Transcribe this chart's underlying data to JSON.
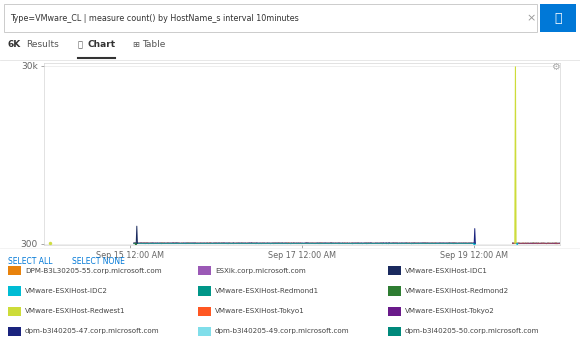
{
  "search_query": "Type=VMware_CL | measure count() by HostName_s interval 10minutes",
  "results_count": "6K",
  "y_tick_top": "30k",
  "y_tick_mid": "300",
  "x_ticks": [
    "Sep 15 12:00 AM",
    "Sep 17 12:00 AM",
    "Sep 19 12:00 AM"
  ],
  "legend_items": [
    {
      "label": "DPM-B3L30205-55.corp.microsoft.com",
      "color": "#E8820C"
    },
    {
      "label": "ESXik.corp.microsoft.com",
      "color": "#9B59B6"
    },
    {
      "label": "VMware-ESXiHost-IDC1",
      "color": "#1A2A5E"
    },
    {
      "label": "VMware-ESXiHost-IDC2",
      "color": "#00BCD4"
    },
    {
      "label": "VMware-ESXiHost-Redmond1",
      "color": "#009688"
    },
    {
      "label": "VMware-ESXiHost-Redmond2",
      "color": "#2E7D32"
    },
    {
      "label": "VMware-ESXiHost-Redwest1",
      "color": "#CDDC39"
    },
    {
      "label": "VMware-ESXiHost-Tokyo1",
      "color": "#FF5722"
    },
    {
      "label": "VMware-ESXiHost-Tokyo2",
      "color": "#6A1A8A"
    },
    {
      "label": "dpm-b3l40205-47.corp.microsoft.com",
      "color": "#1A237E"
    },
    {
      "label": "dpm-b3l40205-49.corp.microsoft.com",
      "color": "#80DEEA"
    },
    {
      "label": "dpm-b3l40205-50.corp.microsoft.com",
      "color": "#00897B"
    }
  ],
  "bg_color": "#FFFFFF",
  "chart_bg": "#FFFFFF",
  "grid_color": "#E8E8E8",
  "axis_color": "#CCCCCC",
  "text_color": "#666666",
  "select_all_color": "#0078D7",
  "search_bar_border": "#CCCCCC",
  "gear_icon_color": "#AAAAAA",
  "tab_line_color": "#333333",
  "search_btn_color": "#0078D7"
}
